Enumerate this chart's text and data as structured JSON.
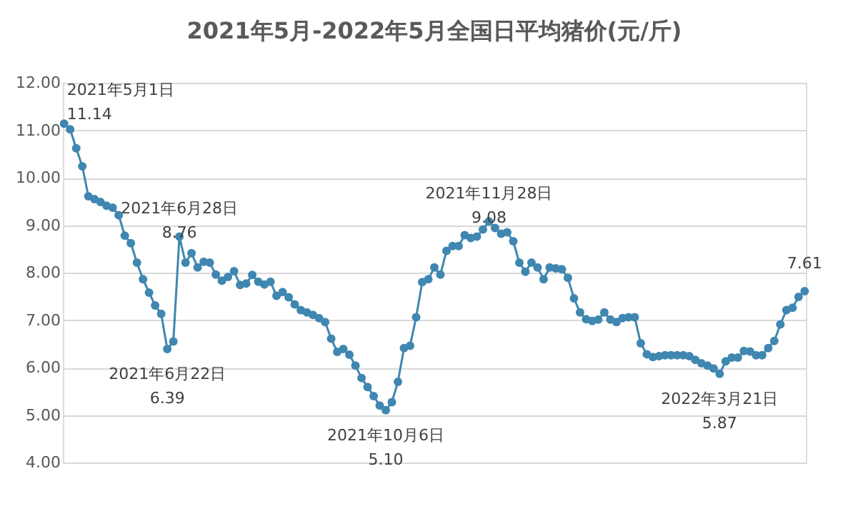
{
  "chart_data": {
    "type": "line",
    "title": "2021年5月-2022年5月全国日平均猪价(元/斤)",
    "marker": "circle",
    "grid": "y",
    "tick_labels": "y",
    "ylim": [
      4,
      12
    ],
    "yticks": [
      {
        "value": 4,
        "label": "4.00"
      },
      {
        "value": 5,
        "label": "5.00"
      },
      {
        "value": 6,
        "label": "6.00"
      },
      {
        "value": 7,
        "label": "7.00"
      },
      {
        "value": 8,
        "label": "8.00"
      },
      {
        "value": 9,
        "label": "9.00"
      },
      {
        "value": 10,
        "label": "10.00"
      },
      {
        "value": 11,
        "label": "11.00"
      },
      {
        "value": 12,
        "label": "12.00"
      }
    ],
    "categories": [
      null,
      null,
      null,
      null,
      null,
      null,
      null,
      null,
      null,
      null,
      null,
      null,
      null,
      null,
      null,
      null,
      null,
      null,
      null,
      null,
      null,
      null,
      null,
      null,
      null,
      null,
      null,
      null,
      null,
      null,
      null,
      null,
      null,
      null,
      null,
      null,
      null,
      null,
      null,
      null,
      null,
      null,
      null,
      null,
      null,
      null,
      null,
      null,
      null,
      null,
      null,
      null,
      null,
      null,
      null,
      null,
      null,
      null,
      null,
      null,
      null,
      null,
      null,
      null,
      null,
      null,
      null,
      null,
      null,
      null,
      null,
      null,
      null,
      null,
      null,
      null,
      null,
      null,
      null,
      null,
      null,
      null,
      null,
      null,
      null,
      null,
      null,
      null,
      null,
      null,
      null,
      null,
      null,
      null,
      null,
      null,
      null,
      null,
      null,
      null,
      null,
      null,
      null,
      null,
      null,
      null,
      null,
      null,
      null,
      null,
      null,
      null,
      null,
      null,
      null,
      null,
      null,
      null,
      null,
      null,
      null,
      null,
      null
    ],
    "series": [
      {
        "color": "#3f87b0",
        "values": [
          11.14,
          11.02,
          10.62,
          10.24,
          9.61,
          9.55,
          9.49,
          9.41,
          9.37,
          9.21,
          8.78,
          8.62,
          8.21,
          7.86,
          7.58,
          7.31,
          7.13,
          6.39,
          6.55,
          8.76,
          8.21,
          8.41,
          8.11,
          8.23,
          8.21,
          7.96,
          7.83,
          7.91,
          8.03,
          7.74,
          7.77,
          7.95,
          7.81,
          7.75,
          7.81,
          7.51,
          7.59,
          7.48,
          7.33,
          7.21,
          7.16,
          7.11,
          7.04,
          6.96,
          6.61,
          6.33,
          6.39,
          6.27,
          6.04,
          5.78,
          5.59,
          5.4,
          5.2,
          5.1,
          5.27,
          5.7,
          6.41,
          6.46,
          7.06,
          7.8,
          7.86,
          8.11,
          7.96,
          8.46,
          8.56,
          8.56,
          8.79,
          8.73,
          8.76,
          8.91,
          9.08,
          8.94,
          8.82,
          8.85,
          8.66,
          8.21,
          8.02,
          8.21,
          8.11,
          7.86,
          8.11,
          8.09,
          8.07,
          7.89,
          7.46,
          7.16,
          7.02,
          6.98,
          7.01,
          7.16,
          7.01,
          6.96,
          7.04,
          7.06,
          7.06,
          6.51,
          6.28,
          6.22,
          6.24,
          6.26,
          6.26,
          6.26,
          6.26,
          6.24,
          6.16,
          6.09,
          6.04,
          5.98,
          5.87,
          6.13,
          6.21,
          6.21,
          6.35,
          6.34,
          6.26,
          6.26,
          6.41,
          6.56,
          6.91,
          7.21,
          7.26,
          7.49,
          7.61
        ],
        "value_labels": [
          "2021年5月1日\n11.14",
          null,
          null,
          null,
          null,
          null,
          null,
          null,
          null,
          null,
          null,
          null,
          null,
          null,
          null,
          null,
          null,
          "2021年6月22日\n6.39",
          null,
          "2021年6月28日\n8.76",
          null,
          null,
          null,
          null,
          null,
          null,
          null,
          null,
          null,
          null,
          null,
          null,
          null,
          null,
          null,
          null,
          null,
          null,
          null,
          null,
          null,
          null,
          null,
          null,
          null,
          null,
          null,
          null,
          null,
          null,
          null,
          null,
          null,
          "2021年10月6日\n5.10",
          null,
          null,
          null,
          null,
          null,
          null,
          null,
          null,
          null,
          null,
          null,
          null,
          null,
          null,
          null,
          null,
          "2021年11月28日\n9.08",
          null,
          null,
          null,
          null,
          null,
          null,
          null,
          null,
          null,
          null,
          null,
          null,
          null,
          null,
          null,
          null,
          null,
          null,
          null,
          null,
          null,
          null,
          null,
          null,
          null,
          null,
          null,
          null,
          null,
          null,
          null,
          null,
          null,
          null,
          null,
          null,
          null,
          "2022年3月21日\n5.87",
          null,
          null,
          null,
          null,
          null,
          null,
          null,
          null,
          null,
          null,
          null,
          null,
          null,
          "7.61"
        ]
      }
    ]
  }
}
